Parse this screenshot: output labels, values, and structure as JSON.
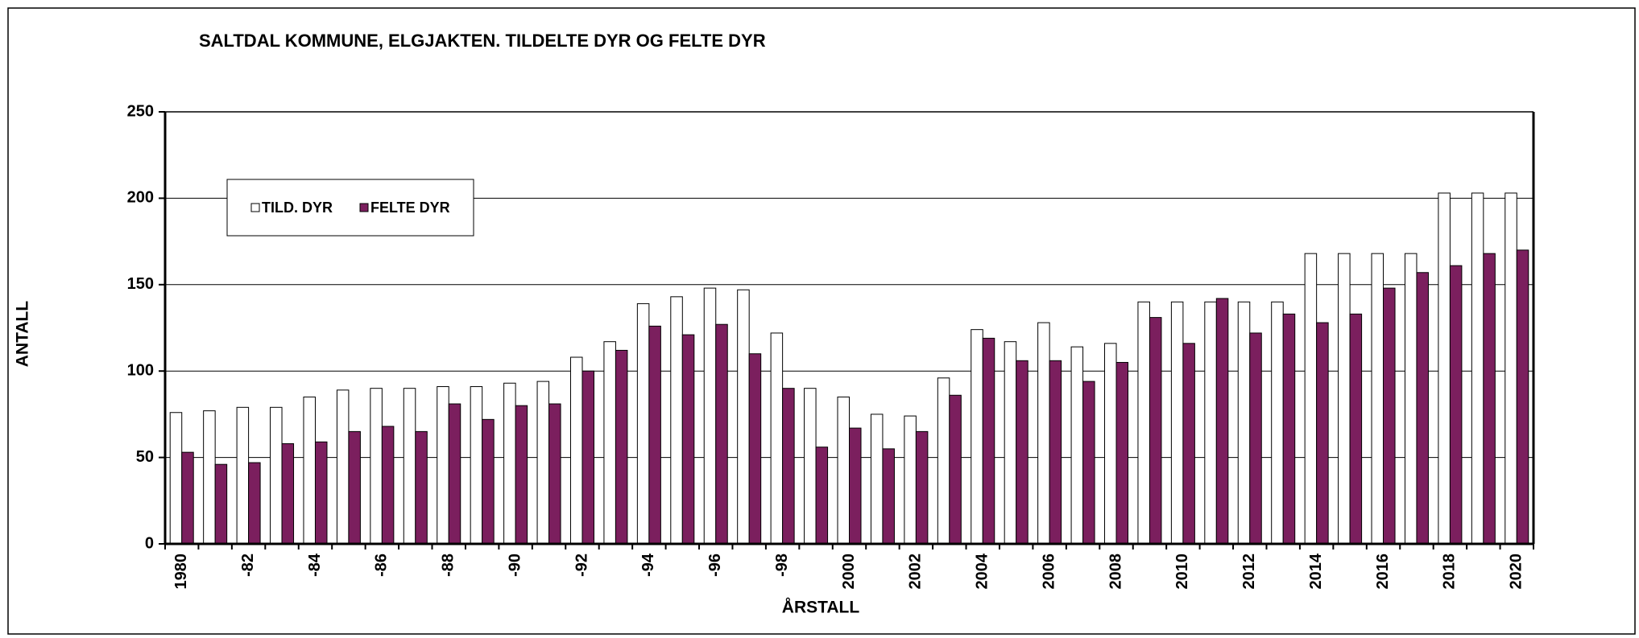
{
  "chart_data": {
    "type": "bar",
    "title": "SALTDAL KOMMUNE, ELGJAKTEN. TILDELTE DYR OG FELTE DYR",
    "x_label": "ÅRSTALL",
    "y_label": "ANTALL",
    "categories": [
      "1980",
      null,
      "-82",
      null,
      "-84",
      null,
      "-86",
      null,
      "-88",
      null,
      "-90",
      null,
      "-92",
      null,
      "-94",
      null,
      "-96",
      null,
      "-98",
      null,
      "2000",
      null,
      "2002",
      null,
      "2004",
      null,
      "2006",
      null,
      "2008",
      null,
      "2010",
      null,
      "2012",
      null,
      "2014",
      null,
      "2016",
      null,
      "2018",
      null,
      "2020"
    ],
    "series": [
      {
        "name": "TILD. DYR",
        "color": "#ffffff",
        "values": [
          76,
          77,
          79,
          79,
          85,
          89,
          90,
          90,
          91,
          91,
          93,
          94,
          108,
          117,
          139,
          143,
          148,
          147,
          122,
          90,
          85,
          75,
          74,
          96,
          124,
          117,
          128,
          114,
          116,
          140,
          140,
          140,
          140,
          140,
          168,
          168,
          168,
          168,
          203,
          203,
          203
        ]
      },
      {
        "name": "FELTE DYR",
        "color": "#7b1f5e",
        "values": [
          53,
          46,
          47,
          58,
          59,
          65,
          68,
          65,
          81,
          72,
          80,
          81,
          100,
          112,
          126,
          121,
          127,
          110,
          90,
          56,
          67,
          55,
          65,
          86,
          119,
          106,
          106,
          94,
          105,
          131,
          116,
          142,
          122,
          133,
          128,
          133,
          148,
          157,
          161,
          168,
          170
        ]
      }
    ],
    "ylim": [
      0,
      250
    ],
    "yticks": [
      0,
      50,
      100,
      150,
      200,
      250
    ],
    "grid": true,
    "legend": "upper left"
  }
}
